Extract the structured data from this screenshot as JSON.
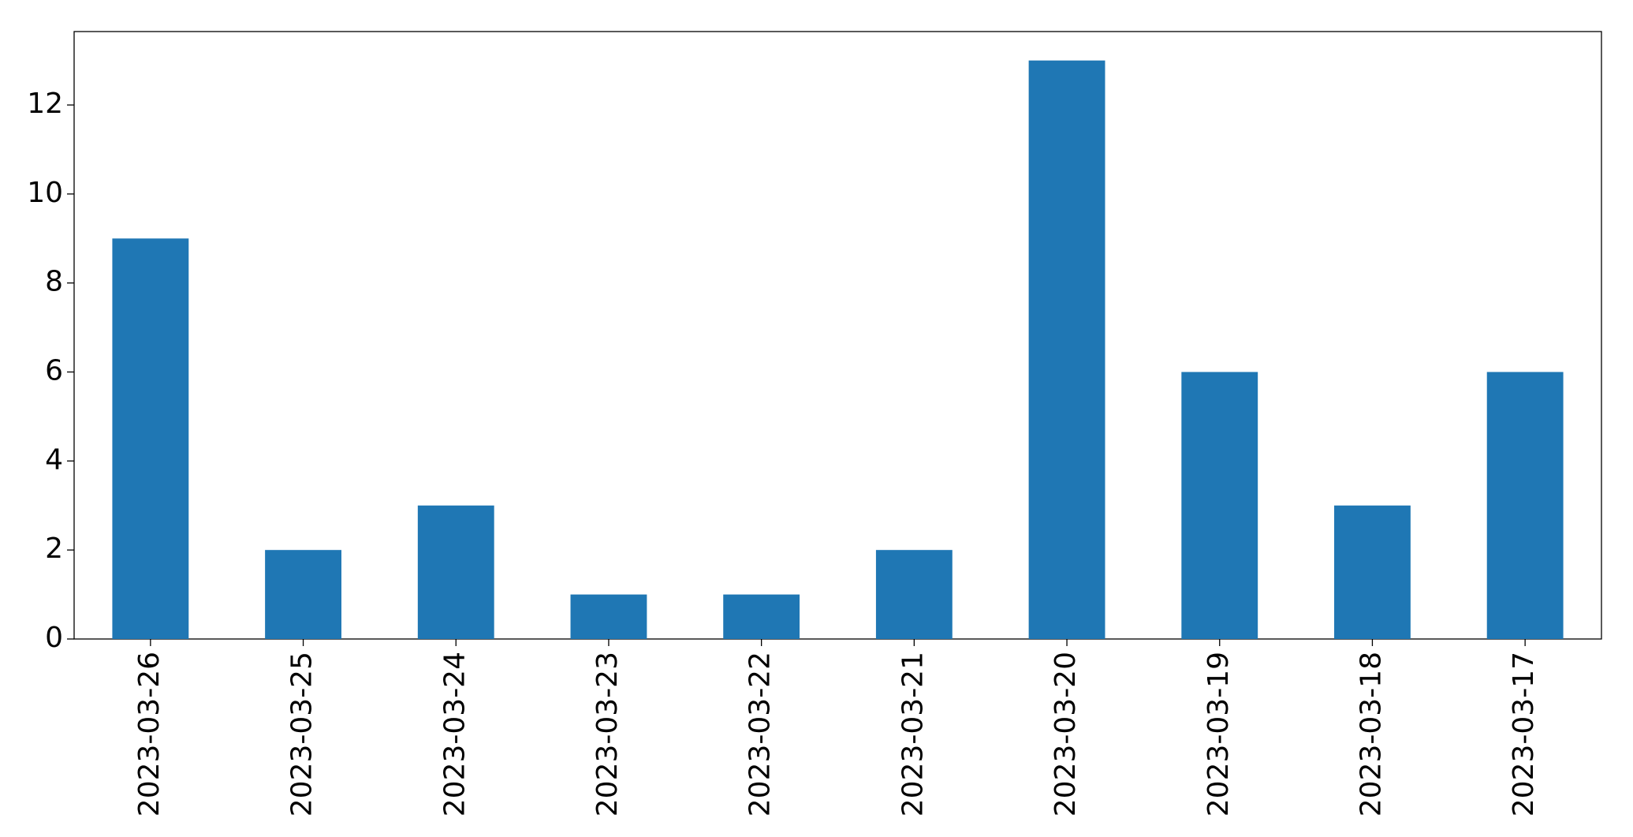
{
  "chart_data": {
    "type": "bar",
    "categories": [
      "2023-03-26",
      "2023-03-25",
      "2023-03-24",
      "2023-03-23",
      "2023-03-22",
      "2023-03-21",
      "2023-03-20",
      "2023-03-19",
      "2023-03-18",
      "2023-03-17"
    ],
    "values": [
      9,
      2,
      3,
      1,
      1,
      2,
      13,
      6,
      3,
      6
    ],
    "color": "#1f77b4",
    "ylim": [
      0,
      13.65
    ],
    "yticks": [
      0,
      2,
      4,
      6,
      8,
      10,
      12
    ],
    "grid": false
  }
}
